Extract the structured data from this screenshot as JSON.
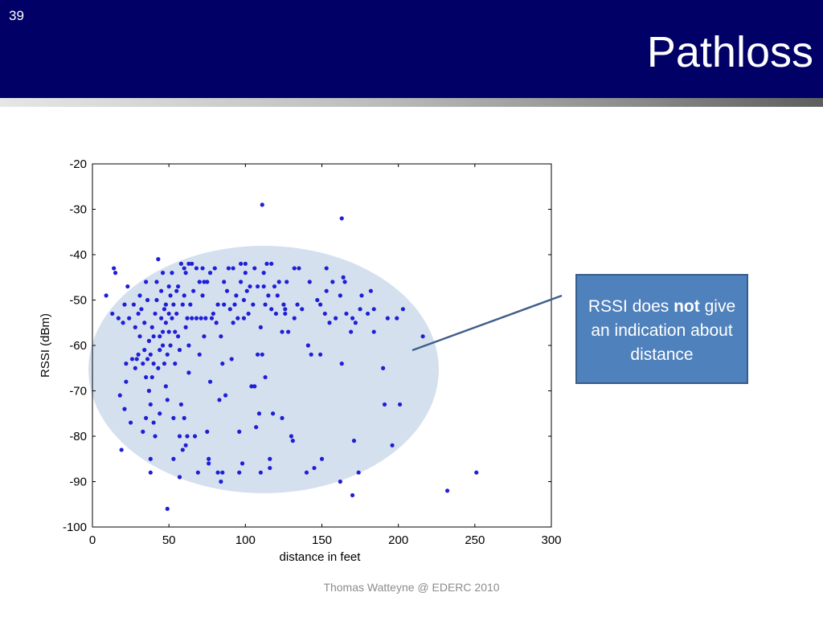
{
  "slide": {
    "number": "39",
    "title": "Pathloss",
    "footer": "Thomas Watteyne @ EDERC 2010"
  },
  "callout": {
    "text_before": "RSSI does ",
    "text_bold": "not",
    "text_after": " give an indication about distance"
  },
  "colors": {
    "header": "#000066",
    "points": "#1f1fd6",
    "ellipse": "#d5e0ef",
    "callout_fill": "#4f81bd",
    "callout_border": "#385d8a",
    "pointer_line": "#3f5f8a"
  },
  "chart_data": {
    "type": "scatter",
    "xlabel": "distance in feet",
    "ylabel": "RSSI (dBm)",
    "xlim": [
      0,
      300
    ],
    "ylim": [
      -100,
      -20
    ],
    "xticks": [
      0,
      50,
      100,
      150,
      200,
      250,
      300
    ],
    "yticks": [
      -20,
      -30,
      -40,
      -50,
      -60,
      -70,
      -80,
      -90,
      -100
    ],
    "grid": false,
    "points": [
      [
        9,
        -49
      ],
      [
        13,
        -53
      ],
      [
        14,
        -43
      ],
      [
        15,
        -44
      ],
      [
        17,
        -54
      ],
      [
        18,
        -71
      ],
      [
        19,
        -83
      ],
      [
        20,
        -55
      ],
      [
        21,
        -51
      ],
      [
        21,
        -74
      ],
      [
        22,
        -64
      ],
      [
        22,
        -68
      ],
      [
        23,
        -47
      ],
      [
        24,
        -54
      ],
      [
        25,
        -77
      ],
      [
        26,
        -63
      ],
      [
        27,
        -51
      ],
      [
        28,
        -56
      ],
      [
        28,
        -65
      ],
      [
        29,
        -63
      ],
      [
        30,
        -53
      ],
      [
        30,
        -62
      ],
      [
        31,
        -49
      ],
      [
        31,
        -58
      ],
      [
        32,
        -52
      ],
      [
        33,
        -64
      ],
      [
        33,
        -79
      ],
      [
        34,
        -55
      ],
      [
        34,
        -61
      ],
      [
        35,
        -46
      ],
      [
        35,
        -67
      ],
      [
        35,
        -76
      ],
      [
        36,
        -63
      ],
      [
        36,
        -50
      ],
      [
        37,
        -59
      ],
      [
        37,
        -70
      ],
      [
        38,
        -73
      ],
      [
        38,
        -62
      ],
      [
        38,
        -85
      ],
      [
        38,
        -88
      ],
      [
        39,
        -56
      ],
      [
        39,
        -67
      ],
      [
        40,
        -77
      ],
      [
        40,
        -64
      ],
      [
        40,
        -58
      ],
      [
        41,
        -53
      ],
      [
        41,
        -80
      ],
      [
        42,
        -50
      ],
      [
        42,
        -46
      ],
      [
        43,
        -41
      ],
      [
        43,
        -65
      ],
      [
        44,
        -75
      ],
      [
        44,
        -61
      ],
      [
        44,
        -58
      ],
      [
        45,
        -54
      ],
      [
        45,
        -48
      ],
      [
        46,
        -44
      ],
      [
        46,
        -57
      ],
      [
        46,
        -60
      ],
      [
        47,
        -52
      ],
      [
        47,
        -64
      ],
      [
        48,
        -69
      ],
      [
        48,
        -55
      ],
      [
        48,
        -51
      ],
      [
        49,
        -96
      ],
      [
        49,
        -72
      ],
      [
        49,
        -62
      ],
      [
        50,
        -57
      ],
      [
        50,
        -53
      ],
      [
        50,
        -47
      ],
      [
        51,
        -60
      ],
      [
        51,
        -49
      ],
      [
        52,
        -54
      ],
      [
        52,
        -44
      ],
      [
        53,
        -85
      ],
      [
        53,
        -76
      ],
      [
        53,
        -51
      ],
      [
        54,
        -64
      ],
      [
        54,
        -57
      ],
      [
        55,
        -53
      ],
      [
        55,
        -48
      ],
      [
        56,
        -47
      ],
      [
        56,
        -58
      ],
      [
        57,
        -61
      ],
      [
        57,
        -80
      ],
      [
        57,
        -89
      ],
      [
        58,
        -42
      ],
      [
        58,
        -73
      ],
      [
        59,
        -51
      ],
      [
        59,
        -83
      ],
      [
        60,
        -43
      ],
      [
        60,
        -49
      ],
      [
        60,
        -76
      ],
      [
        61,
        -44
      ],
      [
        61,
        -56
      ],
      [
        61,
        -82
      ],
      [
        62,
        -54
      ],
      [
        62,
        -80
      ],
      [
        63,
        -42
      ],
      [
        63,
        -60
      ],
      [
        63,
        -66
      ],
      [
        64,
        -51
      ],
      [
        65,
        -42
      ],
      [
        65,
        -54
      ],
      [
        66,
        -48
      ],
      [
        67,
        -80
      ],
      [
        68,
        -54
      ],
      [
        68,
        -43
      ],
      [
        69,
        -88
      ],
      [
        70,
        -46
      ],
      [
        70,
        -62
      ],
      [
        71,
        -54
      ],
      [
        72,
        -43
      ],
      [
        72,
        -49
      ],
      [
        73,
        -46
      ],
      [
        73,
        -58
      ],
      [
        74,
        -54
      ],
      [
        75,
        -46
      ],
      [
        75,
        -79
      ],
      [
        76,
        -85
      ],
      [
        76,
        -86
      ],
      [
        77,
        -44
      ],
      [
        77,
        -68
      ],
      [
        78,
        -54
      ],
      [
        79,
        -53
      ],
      [
        80,
        -43
      ],
      [
        81,
        -55
      ],
      [
        82,
        -51
      ],
      [
        82,
        -88
      ],
      [
        83,
        -72
      ],
      [
        84,
        -90
      ],
      [
        84,
        -58
      ],
      [
        85,
        -64
      ],
      [
        85,
        -88
      ],
      [
        86,
        -46
      ],
      [
        86,
        -51
      ],
      [
        87,
        -71
      ],
      [
        88,
        -48
      ],
      [
        89,
        -43
      ],
      [
        90,
        -52
      ],
      [
        91,
        -63
      ],
      [
        92,
        -55
      ],
      [
        92,
        -43
      ],
      [
        93,
        -51
      ],
      [
        94,
        -49
      ],
      [
        95,
        -54
      ],
      [
        96,
        -79
      ],
      [
        96,
        -88
      ],
      [
        97,
        -42
      ],
      [
        97,
        -46
      ],
      [
        98,
        -86
      ],
      [
        99,
        -50
      ],
      [
        99,
        -54
      ],
      [
        100,
        -44
      ],
      [
        100,
        -42
      ],
      [
        101,
        -48
      ],
      [
        102,
        -53
      ],
      [
        103,
        -47
      ],
      [
        104,
        -69
      ],
      [
        105,
        -51
      ],
      [
        106,
        -69
      ],
      [
        106,
        -43
      ],
      [
        107,
        -78
      ],
      [
        108,
        -47
      ],
      [
        108,
        -62
      ],
      [
        109,
        -75
      ],
      [
        110,
        -88
      ],
      [
        110,
        -56
      ],
      [
        111,
        -29
      ],
      [
        111,
        -62
      ],
      [
        112,
        -47
      ],
      [
        112,
        -44
      ],
      [
        113,
        -51
      ],
      [
        113,
        -67
      ],
      [
        114,
        -42
      ],
      [
        115,
        -49
      ],
      [
        116,
        -85
      ],
      [
        116,
        -87
      ],
      [
        117,
        -42
      ],
      [
        117,
        -52
      ],
      [
        118,
        -75
      ],
      [
        119,
        -47
      ],
      [
        120,
        -53
      ],
      [
        121,
        -49
      ],
      [
        122,
        -46
      ],
      [
        124,
        -76
      ],
      [
        124,
        -57
      ],
      [
        125,
        -51
      ],
      [
        126,
        -53
      ],
      [
        126,
        -52
      ],
      [
        127,
        -46
      ],
      [
        128,
        -57
      ],
      [
        130,
        -80
      ],
      [
        131,
        -81
      ],
      [
        132,
        -54
      ],
      [
        132,
        -43
      ],
      [
        134,
        -51
      ],
      [
        135,
        -43
      ],
      [
        137,
        -52
      ],
      [
        140,
        -88
      ],
      [
        141,
        -60
      ],
      [
        142,
        -46
      ],
      [
        143,
        -62
      ],
      [
        145,
        -87
      ],
      [
        147,
        -50
      ],
      [
        149,
        -51
      ],
      [
        149,
        -62
      ],
      [
        150,
        -85
      ],
      [
        152,
        -53
      ],
      [
        153,
        -48
      ],
      [
        153,
        -43
      ],
      [
        155,
        -55
      ],
      [
        157,
        -46
      ],
      [
        159,
        -54
      ],
      [
        162,
        -49
      ],
      [
        162,
        -90
      ],
      [
        163,
        -64
      ],
      [
        163,
        -32
      ],
      [
        164,
        -45
      ],
      [
        165,
        -46
      ],
      [
        166,
        -53
      ],
      [
        169,
        -57
      ],
      [
        170,
        -93
      ],
      [
        170,
        -54
      ],
      [
        171,
        -81
      ],
      [
        172,
        -55
      ],
      [
        174,
        -88
      ],
      [
        175,
        -52
      ],
      [
        176,
        -49
      ],
      [
        180,
        -53
      ],
      [
        182,
        -48
      ],
      [
        184,
        -52
      ],
      [
        184,
        -57
      ],
      [
        190,
        -65
      ],
      [
        191,
        -73
      ],
      [
        193,
        -54
      ],
      [
        196,
        -82
      ],
      [
        199,
        -54
      ],
      [
        201,
        -73
      ],
      [
        203,
        -52
      ],
      [
        216,
        -58
      ],
      [
        232,
        -92
      ],
      [
        251,
        -88
      ]
    ]
  }
}
